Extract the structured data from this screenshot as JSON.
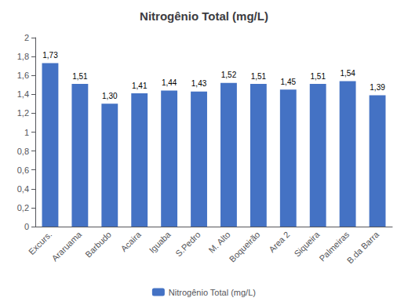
{
  "chart_data": {
    "type": "bar",
    "title": "Nitrogênio Total (mg/L)",
    "categories": [
      "Excurs.",
      "Araruama",
      "Barbudo",
      "Acaira",
      "Iguaba",
      "S.Pedro",
      "M. Alto",
      "Boqueirão",
      "Area 2",
      "Siqueira",
      "Palmeiras",
      "B.da Barra"
    ],
    "series": [
      {
        "name": "Nitrogênio Total (mg/L)",
        "color": "#4472C4",
        "values": [
          1.73,
          1.51,
          1.3,
          1.41,
          1.44,
          1.43,
          1.52,
          1.51,
          1.45,
          1.51,
          1.54,
          1.39
        ],
        "value_labels": [
          "1,73",
          "1,51",
          "1,30",
          "1,41",
          "1,44",
          "1,43",
          "1,52",
          "1,51",
          "1,45",
          "1,51",
          "1,54",
          "1,39"
        ]
      }
    ],
    "ylim": [
      0,
      2.0
    ],
    "yticks": [
      0,
      {
        "value": 0.2,
        "label": "0,2"
      },
      {
        "value": 0.4,
        "label": "0,4"
      },
      {
        "value": 0.6,
        "label": "0,6"
      },
      {
        "value": 0.8,
        "label": "0,8"
      },
      1,
      {
        "value": 1.2,
        "label": "1,2"
      },
      {
        "value": 1.4,
        "label": "1,4"
      },
      {
        "value": 1.6,
        "label": "1,6"
      },
      {
        "value": 1.8,
        "label": "1,8"
      },
      2
    ],
    "grid": false,
    "legend": "bottom",
    "data_labels": true
  }
}
